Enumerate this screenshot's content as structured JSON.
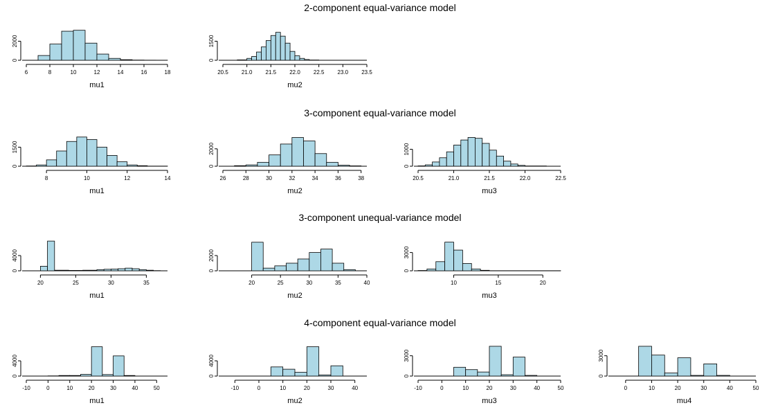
{
  "bar_fill": "#add8e6",
  "rows": [
    {
      "title": "2-component equal-variance model"
    },
    {
      "title": "3-component equal-variance model"
    },
    {
      "title": "3-component unequal-variance model"
    },
    {
      "title": "4-component equal-variance model"
    }
  ],
  "chart_data": [
    {
      "type": "bar",
      "title": "",
      "xlabel": "mu1",
      "xlim": [
        6,
        18
      ],
      "ylim": [
        0,
        3200
      ],
      "xticks": [
        6,
        8,
        10,
        12,
        14,
        16,
        18
      ],
      "yticks": [
        0,
        2000
      ],
      "bins": [
        [
          6,
          7,
          0
        ],
        [
          7,
          8,
          500
        ],
        [
          8,
          9,
          1700
        ],
        [
          9,
          10,
          3050
        ],
        [
          10,
          11,
          3150
        ],
        [
          11,
          12,
          1800
        ],
        [
          12,
          13,
          650
        ],
        [
          13,
          14,
          200
        ],
        [
          14,
          15,
          60
        ],
        [
          15,
          16,
          20
        ],
        [
          16,
          17,
          10
        ],
        [
          17,
          18,
          5
        ]
      ]
    },
    {
      "type": "bar",
      "title": "",
      "xlabel": "mu2",
      "xlim": [
        20.5,
        23.5
      ],
      "ylim": [
        0,
        2400
      ],
      "xticks": [
        20.5,
        21.0,
        21.5,
        22.0,
        22.5,
        23.0,
        23.5
      ],
      "yticks": [
        0,
        1500
      ],
      "bins": [
        [
          20.6,
          20.8,
          5
        ],
        [
          20.8,
          21.0,
          30
        ],
        [
          21.0,
          21.1,
          150
        ],
        [
          21.1,
          21.2,
          300
        ],
        [
          21.2,
          21.3,
          650
        ],
        [
          21.3,
          21.4,
          1050
        ],
        [
          21.4,
          21.5,
          1550
        ],
        [
          21.5,
          21.6,
          1950
        ],
        [
          21.6,
          21.7,
          2200
        ],
        [
          21.7,
          21.8,
          1900
        ],
        [
          21.8,
          21.9,
          1350
        ],
        [
          21.9,
          22.0,
          700
        ],
        [
          22.0,
          22.1,
          350
        ],
        [
          22.1,
          22.2,
          150
        ],
        [
          22.2,
          22.3,
          60
        ],
        [
          22.3,
          22.5,
          20
        ]
      ]
    },
    {
      "type": "bar",
      "title": "",
      "xlabel": "mu1",
      "xlim": [
        7,
        14
      ],
      "ylim": [
        0,
        2400
      ],
      "xticks": [
        8,
        10,
        12,
        14
      ],
      "yticks": [
        0,
        1500
      ],
      "bins": [
        [
          7,
          7.5,
          20
        ],
        [
          7.5,
          8,
          100
        ],
        [
          8,
          8.5,
          500
        ],
        [
          8.5,
          9,
          1200
        ],
        [
          9,
          9.5,
          1950
        ],
        [
          9.5,
          10,
          2300
        ],
        [
          10,
          10.5,
          2100
        ],
        [
          10.5,
          11,
          1500
        ],
        [
          11,
          11.5,
          850
        ],
        [
          11.5,
          12,
          350
        ],
        [
          12,
          12.5,
          100
        ],
        [
          12.5,
          13,
          40
        ],
        [
          13,
          14,
          10
        ]
      ]
    },
    {
      "type": "bar",
      "title": "",
      "xlabel": "mu2",
      "xlim": [
        26,
        38.5
      ],
      "ylim": [
        0,
        3500
      ],
      "xticks": [
        26,
        28,
        30,
        32,
        34,
        36,
        38
      ],
      "yticks": [
        0,
        2000
      ],
      "bins": [
        [
          27,
          28,
          60
        ],
        [
          28,
          29,
          150
        ],
        [
          29,
          30,
          450
        ],
        [
          30,
          31,
          1300
        ],
        [
          31,
          32,
          2550
        ],
        [
          32,
          33,
          3300
        ],
        [
          33,
          34,
          2900
        ],
        [
          34,
          35,
          1450
        ],
        [
          35,
          36,
          450
        ],
        [
          36,
          37,
          120
        ],
        [
          37,
          38,
          40
        ]
      ]
    },
    {
      "type": "bar",
      "title": "",
      "xlabel": "mu3",
      "xlim": [
        20.5,
        22.5
      ],
      "ylim": [
        0,
        1800
      ],
      "xticks": [
        20.5,
        21.0,
        21.5,
        22.0,
        22.5
      ],
      "yticks": [
        0,
        1000
      ],
      "bins": [
        [
          20.5,
          20.6,
          20
        ],
        [
          20.6,
          20.7,
          80
        ],
        [
          20.7,
          20.8,
          250
        ],
        [
          20.8,
          20.9,
          500
        ],
        [
          20.9,
          21.0,
          850
        ],
        [
          21.0,
          21.1,
          1250
        ],
        [
          21.1,
          21.2,
          1550
        ],
        [
          21.2,
          21.3,
          1700
        ],
        [
          21.3,
          21.4,
          1650
        ],
        [
          21.4,
          21.5,
          1350
        ],
        [
          21.5,
          21.6,
          950
        ],
        [
          21.6,
          21.7,
          600
        ],
        [
          21.7,
          21.8,
          300
        ],
        [
          21.8,
          21.9,
          130
        ],
        [
          21.9,
          22.0,
          50
        ],
        [
          22.0,
          22.3,
          15
        ]
      ]
    },
    {
      "type": "bar",
      "title": "",
      "xlabel": "mu1",
      "xlim": [
        18,
        38
      ],
      "ylim": [
        0,
        8000
      ],
      "xticks": [
        20,
        25,
        30,
        35
      ],
      "yticks": [
        0,
        4000
      ],
      "bins": [
        [
          20,
          21,
          1200
        ],
        [
          21,
          22,
          7800
        ],
        [
          22,
          24,
          150
        ],
        [
          24,
          26,
          100
        ],
        [
          26,
          28,
          150
        ],
        [
          28,
          29,
          300
        ],
        [
          29,
          30,
          400
        ],
        [
          30,
          31,
          450
        ],
        [
          31,
          32,
          550
        ],
        [
          32,
          33,
          700
        ],
        [
          33,
          34,
          550
        ],
        [
          34,
          35,
          300
        ],
        [
          35,
          36,
          150
        ],
        [
          36,
          37,
          50
        ]
      ]
    },
    {
      "type": "bar",
      "title": "",
      "xlabel": "mu2",
      "xlim": [
        15,
        40
      ],
      "ylim": [
        0,
        4000
      ],
      "xticks": [
        20,
        25,
        30,
        35,
        40
      ],
      "yticks": [
        0,
        2000
      ],
      "bins": [
        [
          20,
          22,
          3750
        ],
        [
          22,
          24,
          350
        ],
        [
          24,
          26,
          650
        ],
        [
          26,
          28,
          1000
        ],
        [
          28,
          30,
          1550
        ],
        [
          30,
          32,
          2400
        ],
        [
          32,
          34,
          2850
        ],
        [
          34,
          36,
          1000
        ],
        [
          36,
          38,
          150
        ]
      ]
    },
    {
      "type": "bar",
      "title": "",
      "xlabel": "mu3",
      "xlim": [
        6,
        22
      ],
      "ylim": [
        0,
        5000
      ],
      "xticks": [
        10,
        15,
        20
      ],
      "yticks": [
        0,
        3000
      ],
      "bins": [
        [
          6,
          7,
          50
        ],
        [
          7,
          8,
          300
        ],
        [
          8,
          9,
          1500
        ],
        [
          9,
          10,
          4700
        ],
        [
          10,
          11,
          3400
        ],
        [
          11,
          12,
          1200
        ],
        [
          12,
          13,
          300
        ],
        [
          13,
          14,
          80
        ],
        [
          14,
          22,
          20
        ]
      ]
    },
    {
      "type": "bar",
      "title": "",
      "xlabel": "mu1",
      "xlim": [
        -10,
        55
      ],
      "ylim": [
        0,
        8000
      ],
      "xticks": [
        -10,
        0,
        10,
        20,
        30,
        40,
        50
      ],
      "yticks": [
        0,
        4000
      ],
      "bins": [
        [
          0,
          5,
          50
        ],
        [
          5,
          10,
          150
        ],
        [
          10,
          15,
          150
        ],
        [
          15,
          20,
          450
        ],
        [
          20,
          25,
          7700
        ],
        [
          25,
          30,
          400
        ],
        [
          30,
          35,
          5300
        ],
        [
          35,
          40,
          150
        ]
      ]
    },
    {
      "type": "bar",
      "title": "",
      "xlabel": "mu2",
      "xlim": [
        -15,
        45
      ],
      "ylim": [
        0,
        8000
      ],
      "xticks": [
        -10,
        0,
        10,
        20,
        30,
        40
      ],
      "yticks": [
        0,
        4000
      ],
      "bins": [
        [
          5,
          10,
          2400
        ],
        [
          10,
          15,
          1800
        ],
        [
          15,
          20,
          1000
        ],
        [
          20,
          25,
          7700
        ],
        [
          25,
          30,
          300
        ],
        [
          30,
          35,
          2700
        ]
      ]
    },
    {
      "type": "bar",
      "title": "",
      "xlabel": "mu3",
      "xlim": [
        -10,
        50
      ],
      "ylim": [
        0,
        4500
      ],
      "xticks": [
        -10,
        0,
        10,
        20,
        30,
        40,
        50
      ],
      "yticks": [
        0,
        3000
      ],
      "bins": [
        [
          5,
          10,
          1300
        ],
        [
          10,
          15,
          950
        ],
        [
          15,
          20,
          600
        ],
        [
          20,
          25,
          4400
        ],
        [
          25,
          30,
          200
        ],
        [
          30,
          35,
          2800
        ],
        [
          35,
          40,
          100
        ]
      ]
    },
    {
      "type": "bar",
      "title": "",
      "xlabel": "mu4",
      "xlim": [
        -5,
        50
      ],
      "ylim": [
        0,
        4500
      ],
      "xticks": [
        0,
        10,
        20,
        30,
        40,
        50
      ],
      "yticks": [
        0,
        3000
      ],
      "bins": [
        [
          5,
          10,
          4400
        ],
        [
          10,
          15,
          3100
        ],
        [
          15,
          20,
          450
        ],
        [
          20,
          25,
          2700
        ],
        [
          25,
          30,
          100
        ],
        [
          30,
          35,
          1800
        ],
        [
          35,
          40,
          100
        ]
      ]
    }
  ]
}
